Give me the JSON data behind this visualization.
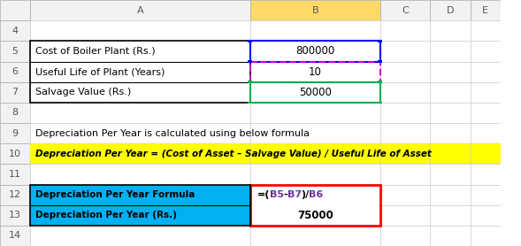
{
  "bg_color": "#ffffff",
  "header_color": "#f2f2f2",
  "col_b_header_color": "#ffd966",
  "col_labels": [
    "",
    "A",
    "B",
    "C",
    "D",
    "E"
  ],
  "row_labels": [
    "",
    "4",
    "5",
    "6",
    "7",
    "8",
    "9",
    "10",
    "11",
    "12",
    "13",
    "14"
  ],
  "row5_colA": "Cost of Boiler Plant (Rs.)",
  "row5_colB": "800000",
  "row6_colA": "Useful Life of Plant (Years)",
  "row6_colB": "10",
  "row7_colA": "Salvage Value (Rs.)",
  "row7_colB": "50000",
  "row9_text": "Depreciation Per Year is calculated using below formula",
  "row10_text": "Depreciation Per Year = (Cost of Asset – Salvage Value) / Useful Life of Asset",
  "row10_bg": "#ffff00",
  "row10_text_color": "#000000",
  "row12_colA": "Depreciation Per Year Formula",
  "row12_formula_parts": [
    [
      "=(",
      "#000000"
    ],
    [
      "B5",
      "#7030a0"
    ],
    [
      "-",
      "#000000"
    ],
    [
      "B7",
      "#7030a0"
    ],
    [
      ")/",
      "#000000"
    ],
    [
      "B6",
      "#7030a0"
    ]
  ],
  "row13_colA": "Depreciation Per Year (Rs.)",
  "row13_colB": "75000",
  "cyan_bg": "#00b0f0",
  "red_border": "#ff0000",
  "blue_border": "#0000ff",
  "green_border": "#00b050",
  "purple_border": "#cc00cc"
}
